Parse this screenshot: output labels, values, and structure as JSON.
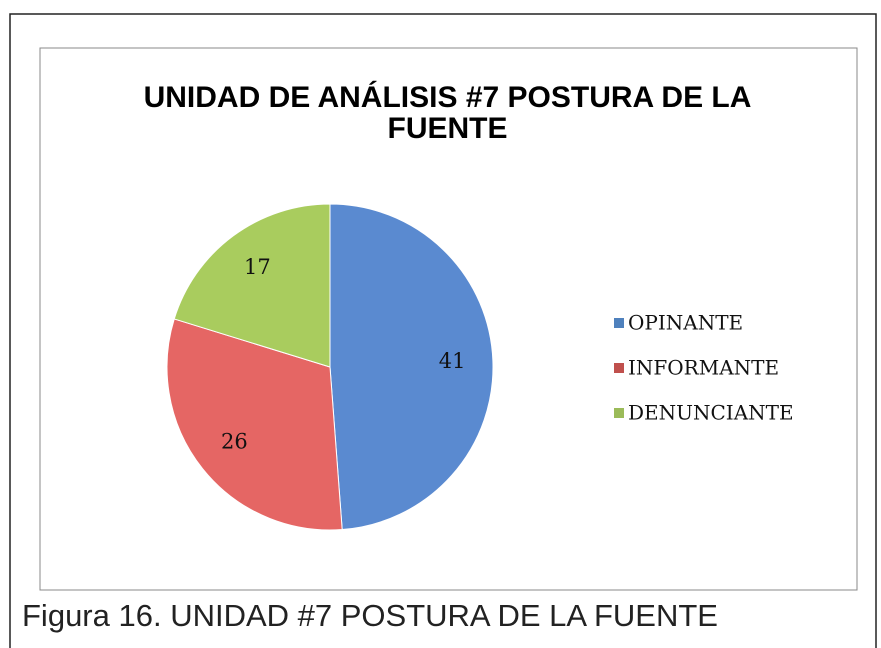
{
  "chart_data": {
    "type": "pie",
    "title": "UNIDAD DE ANÁLISIS #7 POSTURA DE LA FUENTE",
    "categories": [
      "OPINANTE",
      "INFORMANTE",
      "DENUNCIANTE"
    ],
    "values": [
      41,
      26,
      17
    ],
    "colors": [
      "#5a8ad0",
      "#e56664",
      "#a9cc5e"
    ],
    "legend_colors": [
      "#4f81bd",
      "#c0504d",
      "#9bbb59"
    ],
    "legend": "right",
    "caption": "Figura 16. UNIDAD #7 POSTURA DE LA FUENTE"
  }
}
